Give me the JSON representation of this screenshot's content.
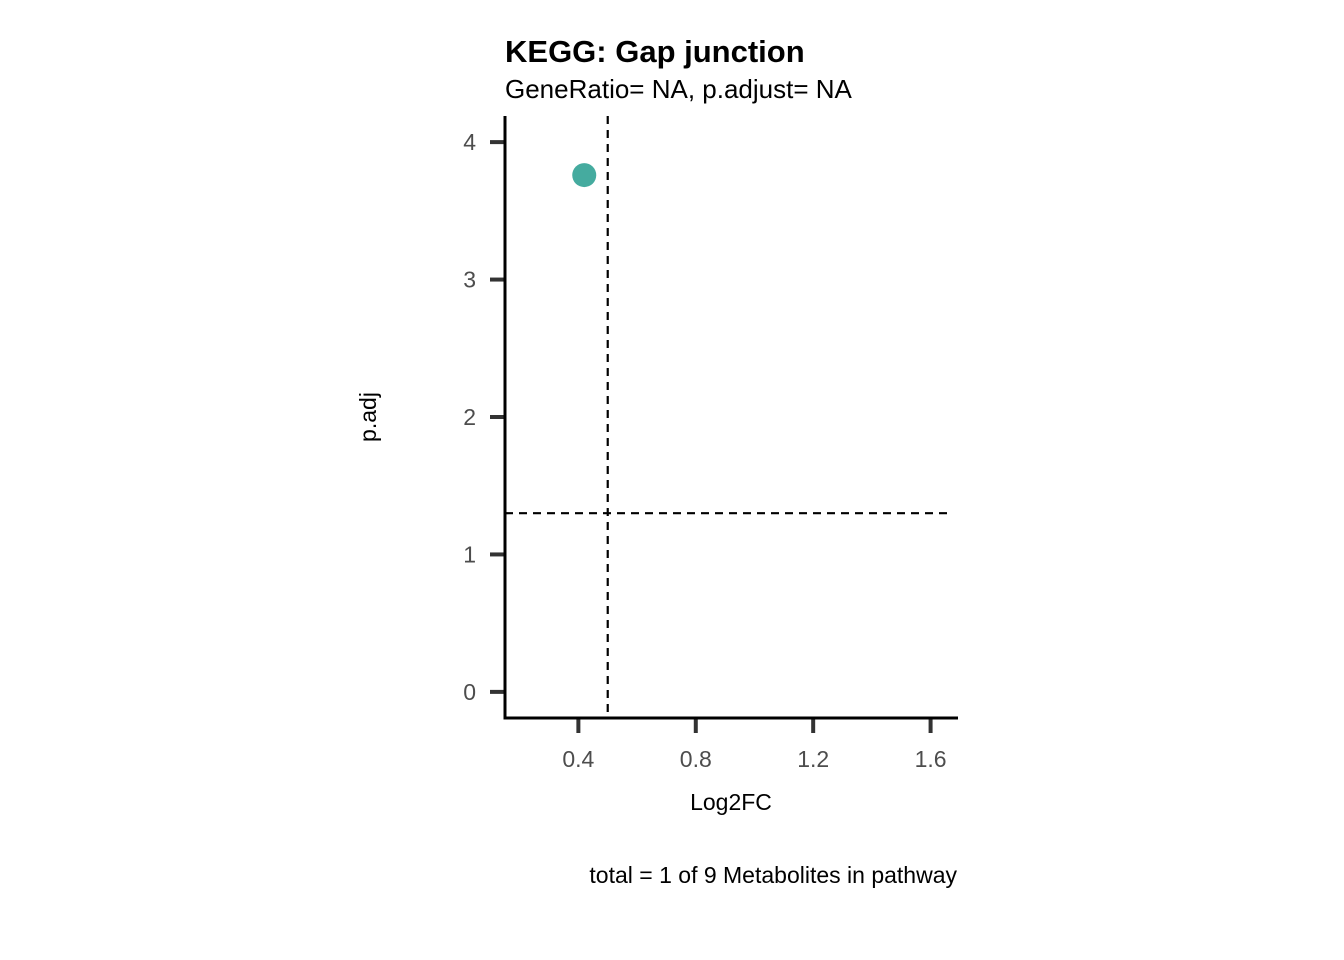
{
  "chart_data": {
    "type": "scatter",
    "title": "KEGG: Gap junction",
    "subtitle": "GeneRatio= NA, p.adjust= NA",
    "xlabel": "Log2FC",
    "ylabel": "p.adj",
    "caption": "total = 1 of 9 Metabolites in pathway",
    "xlim": [
      0.15,
      1.69
    ],
    "ylim": [
      -0.19,
      4.19
    ],
    "x_ticks": [
      0.4,
      0.8,
      1.2,
      1.6
    ],
    "x_tick_labels": [
      "0.4",
      "0.8",
      "1.2",
      "1.6"
    ],
    "y_ticks": [
      0,
      1,
      2,
      3,
      4
    ],
    "y_tick_labels": [
      "0",
      "1",
      "2",
      "3",
      "4"
    ],
    "grid": false,
    "reference_lines": {
      "vertical_x": 0.5,
      "horizontal_y": 1.3,
      "style": "dashed"
    },
    "points": [
      {
        "x": 0.42,
        "y": 3.76
      }
    ],
    "point_color": "#45ab9f"
  }
}
